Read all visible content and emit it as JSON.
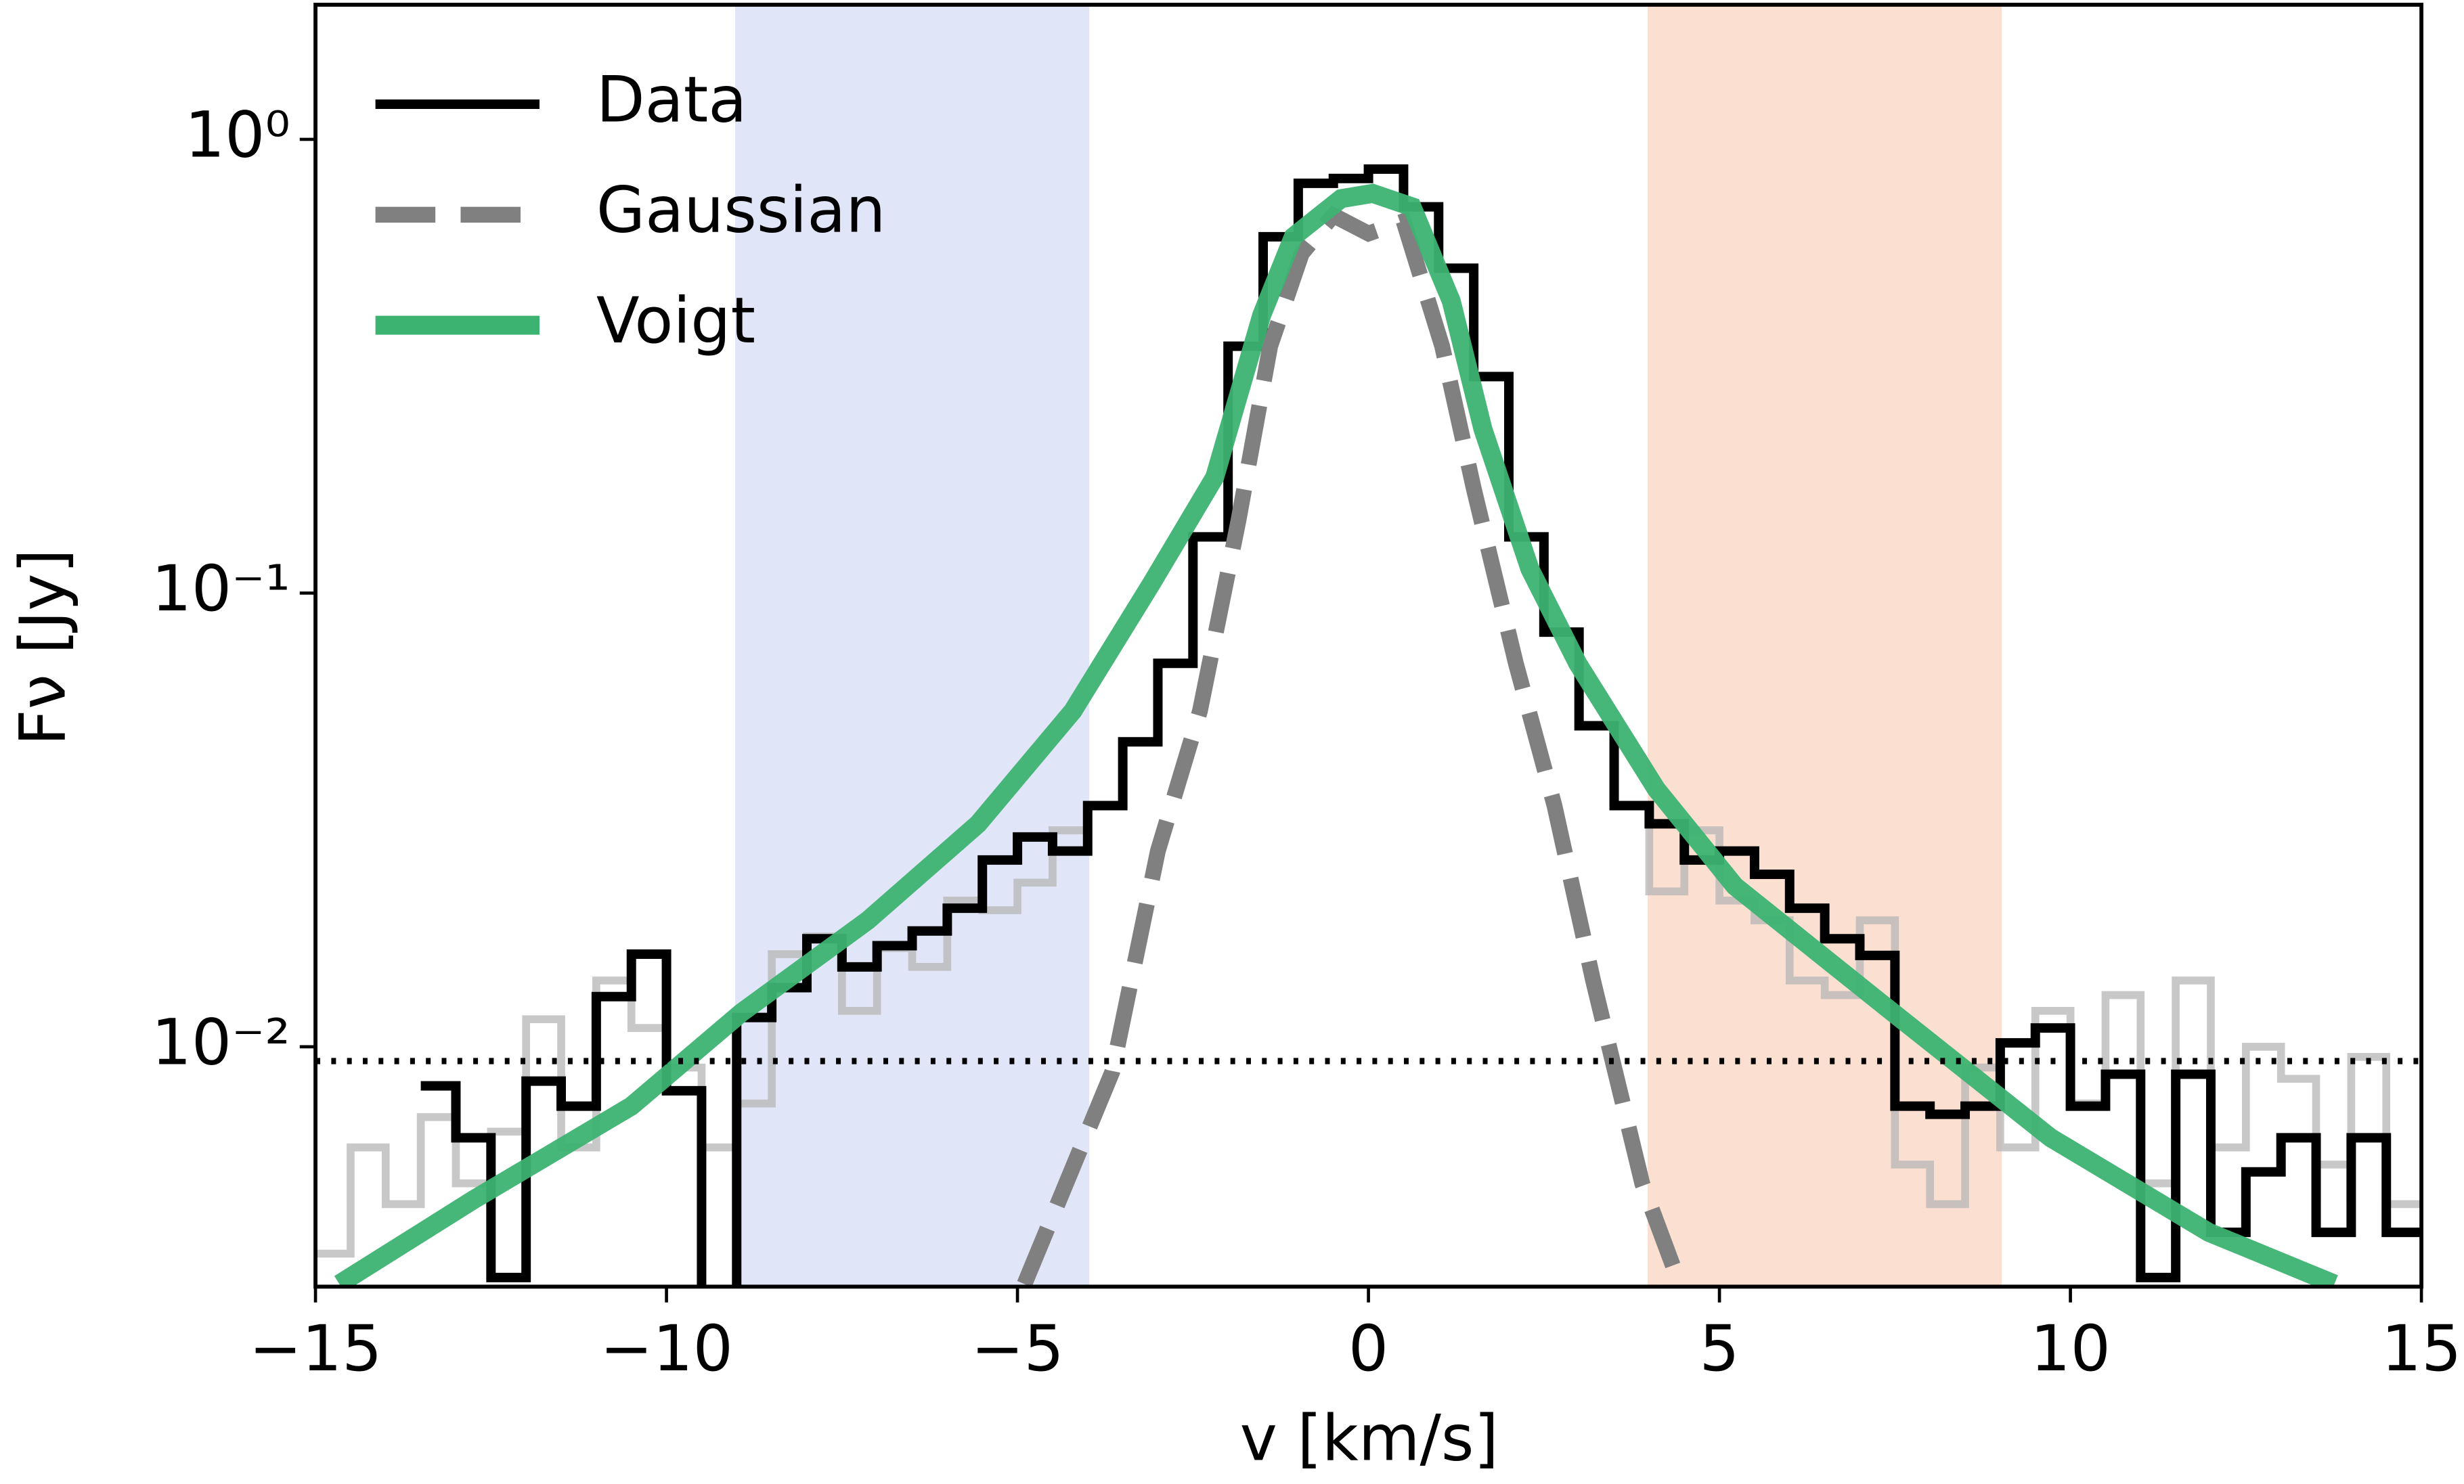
{
  "chart_data": {
    "type": "line",
    "xlabel": "v [km/s]",
    "ylabel": "Fν [Jy]",
    "xlim": [
      -15,
      15
    ],
    "ylim": [
      0.00296,
      1.98
    ],
    "yscale": "log",
    "xticks": [
      {
        "value": -15,
        "label": "−15"
      },
      {
        "value": -10,
        "label": "−10"
      },
      {
        "value": -5,
        "label": "−5"
      },
      0,
      5,
      10,
      15
    ],
    "yticks": [
      {
        "value": 0.01,
        "label": "10⁻²"
      },
      {
        "value": 0.1,
        "label": "10⁻¹"
      },
      {
        "value": 1,
        "label": "10⁰"
      }
    ],
    "legend": "upper left",
    "spans": [
      {
        "range": [
          -9,
          -4
        ],
        "color": "#e0e5f7"
      },
      {
        "range": [
          4,
          9
        ],
        "color": "#fbdfd1"
      }
    ],
    "hline": 0.0093,
    "series": [
      {
        "color": "#b5b5b5",
        "style": "step",
        "x": [
          -14.75,
          -14.25,
          -13.75,
          -13.25,
          -12.75,
          -12.25,
          -11.75,
          -11.25,
          -10.75,
          -10.25,
          -9.75,
          -9.25,
          -8.75,
          -8.25,
          -7.75,
          -7.25,
          -6.75,
          -6.25,
          -5.75,
          -5.25,
          -4.75,
          -4.25,
          -3.75,
          -3.25,
          -2.75,
          -2.25,
          -1.75,
          -1.25,
          -0.75,
          -0.25,
          0.25,
          0.75,
          1.25,
          1.75,
          2.25,
          2.75,
          3.25,
          3.75,
          4.25,
          4.75,
          5.25,
          5.75,
          6.25,
          6.75,
          7.25,
          7.75,
          8.25,
          8.75,
          9.25,
          9.75,
          10.25,
          10.75,
          11.25,
          11.75,
          12.25,
          12.75,
          13.25,
          13.75,
          14.25,
          14.75
        ],
        "values": [
          0.0035,
          0.006,
          0.0045,
          0.007,
          0.005,
          0.0065,
          0.0115,
          0.006,
          0.014,
          0.011,
          0.009,
          0.006,
          0.0075,
          0.016,
          0.0175,
          0.012,
          0.0165,
          0.015,
          0.021,
          0.02,
          0.023,
          0.03,
          0.034,
          0.047,
          0.07,
          0.133,
          0.35,
          0.61,
          0.8,
          0.82,
          0.86,
          0.71,
          0.52,
          0.3,
          0.133,
          0.082,
          0.051,
          0.034,
          0.022,
          0.03,
          0.021,
          0.019,
          0.014,
          0.013,
          0.019,
          0.0055,
          0.0045,
          0.009,
          0.006,
          0.012,
          0.0075,
          0.013,
          0.005,
          0.014,
          0.006,
          0.01,
          0.0085,
          0.0055,
          0.0095,
          0.0045
        ]
      },
      {
        "name": "Data",
        "color": "#000000",
        "style": "step",
        "x": [
          -13.25,
          -12.75,
          -12.25,
          -11.75,
          -11.25,
          -10.75,
          -10.25,
          -9.75,
          -9.25,
          -8.75,
          -8.25,
          -7.75,
          -7.25,
          -6.75,
          -6.25,
          -5.75,
          -5.25,
          -4.75,
          -4.25,
          -3.75,
          -3.25,
          -2.75,
          -2.25,
          -1.75,
          -1.25,
          -0.75,
          -0.25,
          0.25,
          0.75,
          1.25,
          1.75,
          2.25,
          2.75,
          3.25,
          3.75,
          4.25,
          4.75,
          5.25,
          5.75,
          6.25,
          6.75,
          7.25,
          7.75,
          8.25,
          8.75,
          9.25,
          9.75,
          10.25,
          10.75,
          11.25,
          11.75,
          12.25,
          12.75,
          13.25,
          13.75,
          14.25,
          14.75
        ],
        "values": [
          0.0082,
          0.0063,
          0.0031,
          0.0084,
          0.0074,
          0.0129,
          0.016,
          0.008,
          0.0025,
          0.0116,
          0.0135,
          0.0173,
          0.015,
          0.0167,
          0.018,
          0.0202,
          0.0258,
          0.029,
          0.027,
          0.034,
          0.047,
          0.07,
          0.133,
          0.35,
          0.61,
          0.8,
          0.82,
          0.86,
          0.71,
          0.52,
          0.3,
          0.133,
          0.082,
          0.051,
          0.034,
          0.031,
          0.0258,
          0.027,
          0.024,
          0.0202,
          0.0173,
          0.0159,
          0.0074,
          0.0071,
          0.0074,
          0.0102,
          0.011,
          0.0074,
          0.0087,
          0.0031,
          0.0087,
          0.0039,
          0.0053,
          0.0063,
          0.0039,
          0.0063,
          0.0039
        ]
      },
      {
        "name": "Gaussian",
        "color": "#808080",
        "style": "line",
        "linestyle": "dashed",
        "x": [
          -4.9,
          -3.65,
          -3.0,
          -2.4,
          -1.85,
          -1.4,
          -0.95,
          -0.5,
          0,
          0.5,
          1.05,
          1.5,
          2.1,
          2.65,
          3.2,
          3.9,
          4.4
        ],
        "values": [
          0.003,
          0.0088,
          0.027,
          0.055,
          0.145,
          0.35,
          0.56,
          0.68,
          0.62,
          0.66,
          0.35,
          0.17,
          0.07,
          0.034,
          0.014,
          0.005,
          0.0031
        ]
      },
      {
        "name": "Voigt",
        "color": "#3cb371",
        "style": "line",
        "linestyle": "solid",
        "x": [
          -14.66,
          -12.75,
          -10.5,
          -8.93,
          -7.13,
          -5.56,
          -4.21,
          -3.09,
          -2.19,
          -1.52,
          -1.07,
          -0.39,
          0.06,
          0.62,
          1.18,
          1.63,
          2.3,
          2.98,
          4.1,
          5.22,
          7.47,
          9.72,
          11.97,
          13.76
        ],
        "values": [
          0.003,
          0.0046,
          0.0074,
          0.0119,
          0.019,
          0.031,
          0.055,
          0.105,
          0.18,
          0.41,
          0.61,
          0.74,
          0.76,
          0.71,
          0.44,
          0.23,
          0.113,
          0.07,
          0.037,
          0.0226,
          0.0119,
          0.0063,
          0.0039,
          0.003
        ]
      }
    ]
  }
}
